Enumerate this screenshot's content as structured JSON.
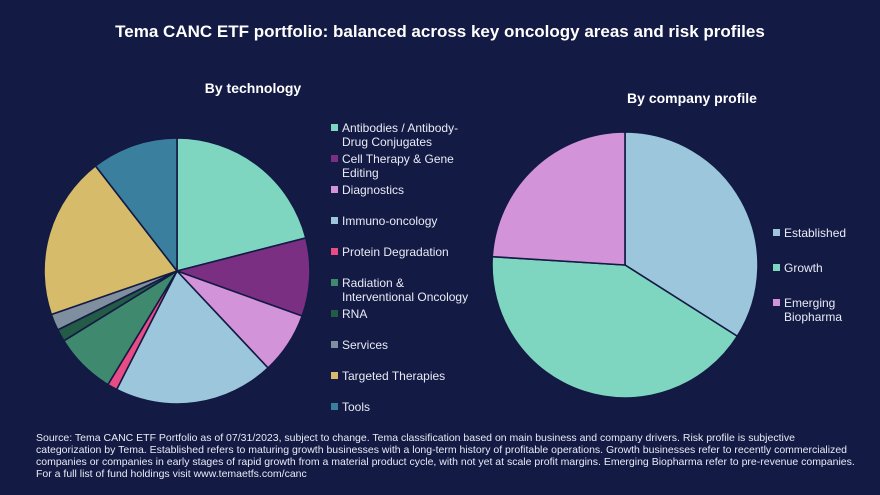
{
  "title": "Tema CANC ETF portfolio: balanced across key oncology areas and risk profiles",
  "chart_data": [
    {
      "type": "pie",
      "title": "By technology",
      "start_angle_deg": 0,
      "direction": "clockwise",
      "slices": [
        {
          "label": "Antibodies / Antibody-Drug Conjugates",
          "value": 21.0,
          "color": "#7fd6c0"
        },
        {
          "label": "Cell Therapy & Gene Editing",
          "value": 9.5,
          "color": "#7b2f83"
        },
        {
          "label": "Diagnostics",
          "value": 7.5,
          "color": "#d293d8"
        },
        {
          "label": "Immuno-oncology",
          "value": 19.5,
          "color": "#9bc6dc"
        },
        {
          "label": "Protein Degradation",
          "value": 1.2,
          "color": "#e94c84"
        },
        {
          "label": "Radiation & Interventional Oncology",
          "value": 7.5,
          "color": "#3f8a6e"
        },
        {
          "label": "RNA",
          "value": 1.5,
          "color": "#245b46"
        },
        {
          "label": "Services",
          "value": 2.0,
          "color": "#7f8fa0"
        },
        {
          "label": "Targeted Therapies",
          "value": 19.8,
          "color": "#d6bb6a"
        },
        {
          "label": "Tools",
          "value": 10.5,
          "color": "#3b7f9e"
        }
      ]
    },
    {
      "type": "pie",
      "title": "By company profile",
      "start_angle_deg": 0,
      "direction": "clockwise",
      "slices": [
        {
          "label": "Established",
          "value": 34.0,
          "color": "#9bc6dc"
        },
        {
          "label": "Growth",
          "value": 42.0,
          "color": "#7fd6c0"
        },
        {
          "label": "Emerging Biopharma",
          "value": 24.0,
          "color": "#d293d8"
        }
      ]
    }
  ],
  "legend_tech": [
    {
      "lines": [
        "Antibodies / Antibody-",
        "Drug Conjugates"
      ]
    },
    {
      "lines": [
        "Cell Therapy & Gene",
        "Editing"
      ]
    },
    {
      "lines": [
        "Diagnostics"
      ]
    },
    {
      "lines": [
        "Immuno-oncology"
      ]
    },
    {
      "lines": [
        "Protein Degradation"
      ]
    },
    {
      "lines": [
        "Radiation &",
        "Interventional Oncology"
      ]
    },
    {
      "lines": [
        "RNA"
      ]
    },
    {
      "lines": [
        "Services"
      ]
    },
    {
      "lines": [
        "Targeted Therapies"
      ]
    },
    {
      "lines": [
        "Tools"
      ]
    }
  ],
  "legend_prof": [
    {
      "lines": [
        "Established"
      ]
    },
    {
      "lines": [
        "Growth"
      ]
    },
    {
      "lines": [
        "Emerging",
        "Biopharma"
      ]
    }
  ],
  "source_text": "Source: Tema CANC ETF Portfolio as of 07/31/2023, subject to change. Tema classification based on main business and company drivers. Risk profile is subjective categorization by Tema.  Established refers to maturing growth businesses with a long-term history of profitable operations. Growth businesses refer to recently commercialized companies or companies in early stages of rapid growth from a material product cycle, with not yet at scale profit margins. Emerging Biopharma refer to pre-revenue companies. For a full list of fund holdings visit www.temaetfs.com/canc"
}
